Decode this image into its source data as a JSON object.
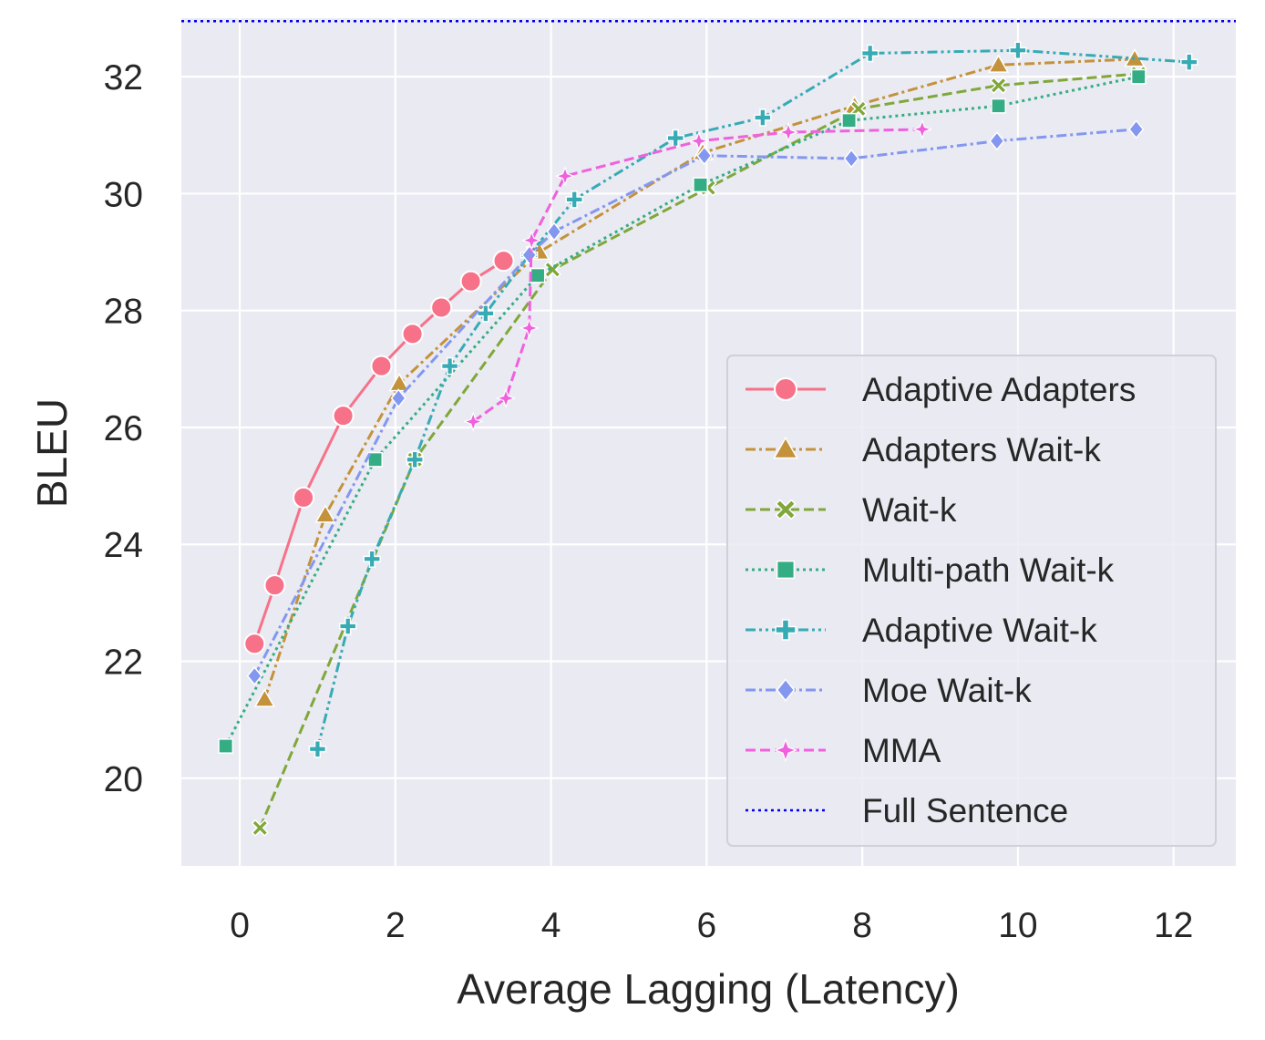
{
  "chart_data": {
    "type": "line",
    "xlabel": "Average Lagging (Latency)",
    "ylabel": "BLEU",
    "xlim": [
      -0.75,
      12.8
    ],
    "ylim": [
      18.5,
      33.0
    ],
    "xticks": [
      0,
      2,
      4,
      6,
      8,
      10,
      12
    ],
    "yticks": [
      20,
      22,
      24,
      26,
      28,
      30,
      32
    ],
    "grid": true,
    "legend_position": "lower-right",
    "series": [
      {
        "name": "Adaptive Adapters",
        "color": "#f77189",
        "marker": "circle",
        "dash": "solid",
        "x": [
          0.19,
          0.45,
          0.82,
          1.33,
          1.82,
          2.22,
          2.59,
          2.97,
          3.39
        ],
        "y": [
          22.3,
          23.3,
          24.8,
          26.2,
          27.05,
          27.6,
          28.05,
          28.5,
          28.85
        ]
      },
      {
        "name": "Adapters Wait-k",
        "color": "#c4923b",
        "marker": "triangle",
        "dash": "dashdot",
        "x": [
          0.32,
          1.1,
          2.05,
          3.85,
          5.95,
          7.9,
          9.75,
          11.5
        ],
        "y": [
          21.35,
          24.5,
          26.75,
          29.0,
          30.7,
          31.5,
          32.2,
          32.3
        ]
      },
      {
        "name": "Wait-k",
        "color": "#80a73a",
        "marker": "x",
        "dash": "dashed",
        "x": [
          0.26,
          2.25,
          4.02,
          6.02,
          7.95,
          9.75,
          11.55
        ],
        "y": [
          19.15,
          25.45,
          28.7,
          30.1,
          31.45,
          31.85,
          32.05
        ]
      },
      {
        "name": "Multi-path Wait-k",
        "color": "#35ad84",
        "marker": "square",
        "dash": "dotted",
        "x": [
          -0.18,
          1.74,
          3.83,
          5.92,
          7.83,
          9.75,
          11.55
        ],
        "y": [
          20.55,
          25.45,
          28.6,
          30.15,
          31.25,
          31.5,
          32.0
        ]
      },
      {
        "name": "Adaptive Wait-k",
        "color": "#37abb4",
        "marker": "plus",
        "dash": "dashdotdot",
        "x": [
          1.0,
          1.39,
          1.7,
          2.25,
          2.7,
          3.16,
          3.72,
          4.3,
          5.6,
          6.72,
          8.1,
          10.0,
          12.2
        ],
        "y": [
          20.5,
          22.6,
          23.75,
          25.45,
          27.05,
          27.95,
          28.95,
          29.9,
          30.95,
          31.3,
          32.4,
          32.45,
          32.25
        ]
      },
      {
        "name": "Moe Wait-k",
        "color": "#8397f0",
        "marker": "diamond",
        "dash": "dashdot",
        "x": [
          0.19,
          2.04,
          3.72,
          4.04,
          5.97,
          7.86,
          9.73,
          11.52
        ],
        "y": [
          21.75,
          26.5,
          28.95,
          29.35,
          30.65,
          30.6,
          30.9,
          31.1
        ]
      },
      {
        "name": "MMA",
        "color": "#f061dd",
        "marker": "star",
        "dash": "dashed",
        "x": [
          3.0,
          3.42,
          3.72,
          3.75,
          4.18,
          5.9,
          7.05,
          8.77
        ],
        "y": [
          26.1,
          26.5,
          27.7,
          29.2,
          30.3,
          30.9,
          31.05,
          31.1
        ]
      },
      {
        "name": "Full Sentence",
        "color": "#0000ee",
        "marker": "none",
        "dash": "dotted",
        "horizontal": true,
        "y": 32.95
      }
    ]
  }
}
